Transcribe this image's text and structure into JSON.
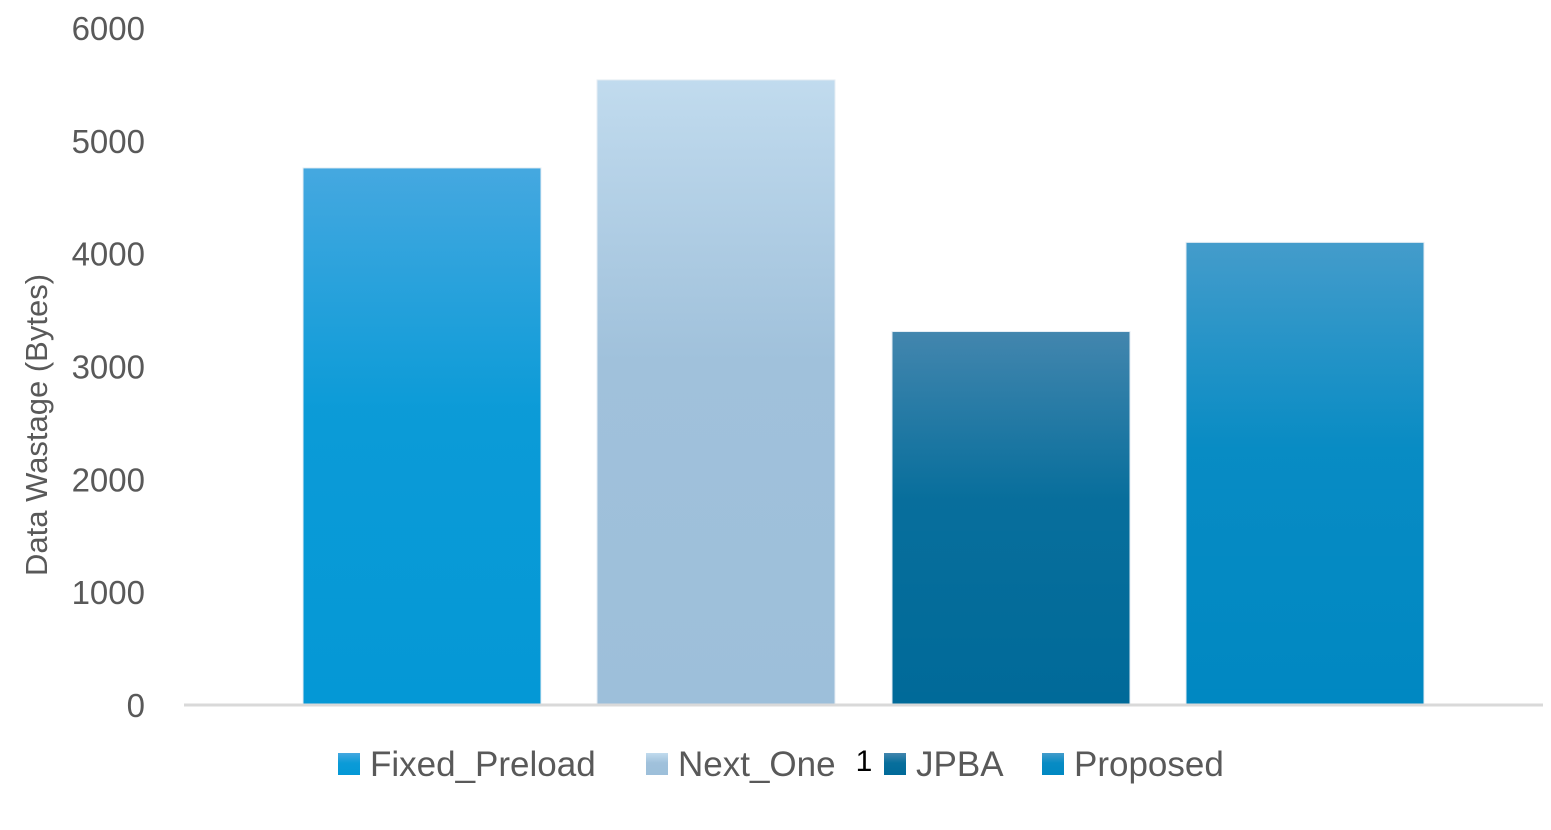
{
  "chart_data": {
    "type": "bar",
    "categories": [
      "1"
    ],
    "series": [
      {
        "name": "Fixed_Preload",
        "values": [
          4760
        ],
        "color_top": "#45a8e0",
        "color_bottom": "#0498d6"
      },
      {
        "name": "Next_One",
        "values": [
          5540
        ],
        "color_top": "#c1dbee",
        "color_bottom": "#9dbfda"
      },
      {
        "name": "JPBA",
        "values": [
          3310
        ],
        "color_top": "#4386ae",
        "color_bottom": "#006a99"
      },
      {
        "name": "Proposed",
        "values": [
          4100
        ],
        "color_top": "#449ccb",
        "color_bottom": "#0088c2"
      }
    ],
    "ylabel": "Data Wastage (Bytes)",
    "xlabel": "",
    "ylim": [
      0,
      6000
    ],
    "yticks": [
      "0",
      "1000",
      "2000",
      "3000",
      "4000",
      "5000",
      "6000"
    ],
    "grid": false,
    "legend_position": "bottom"
  }
}
